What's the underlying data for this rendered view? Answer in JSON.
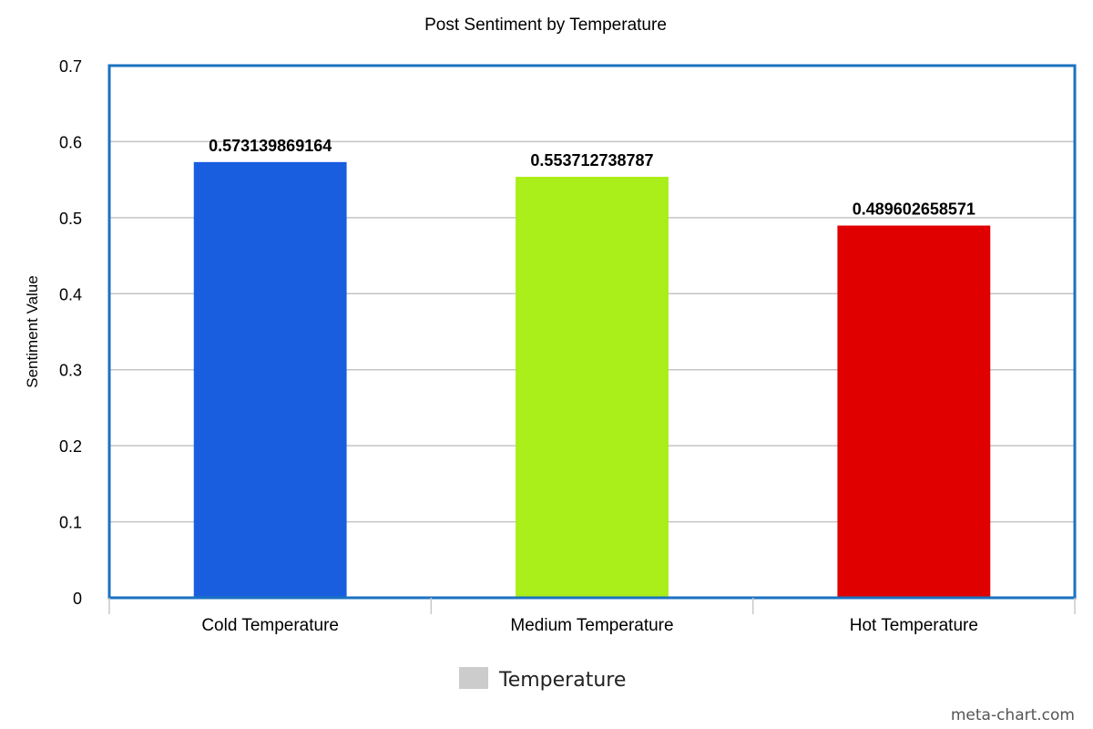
{
  "chart_data": {
    "type": "bar",
    "title": "Post Sentiment by Temperature",
    "xlabel": "",
    "ylabel": "Sentiment Value",
    "ylim": [
      0,
      0.7
    ],
    "yticks": [
      "0",
      "0.1",
      "0.2",
      "0.3",
      "0.4",
      "0.5",
      "0.6",
      "0.7"
    ],
    "grid": true,
    "legend_position": "bottom",
    "categories": [
      "Cold Temperature",
      "Medium Temperature",
      "Hot Temperature"
    ],
    "series": [
      {
        "name": "Temperature",
        "values": [
          0.573139869164,
          0.553712738787,
          0.489602658571
        ],
        "labels": [
          "0.573139869164",
          "0.553712738787",
          "0.489602658571"
        ],
        "colors": [
          "#1a5ee0",
          "#aaee1a",
          "#e00000"
        ]
      }
    ],
    "legend_color": "#cccccc",
    "axis_color": "#1a72c0"
  },
  "footer": {
    "watermark": "meta-chart.com"
  }
}
